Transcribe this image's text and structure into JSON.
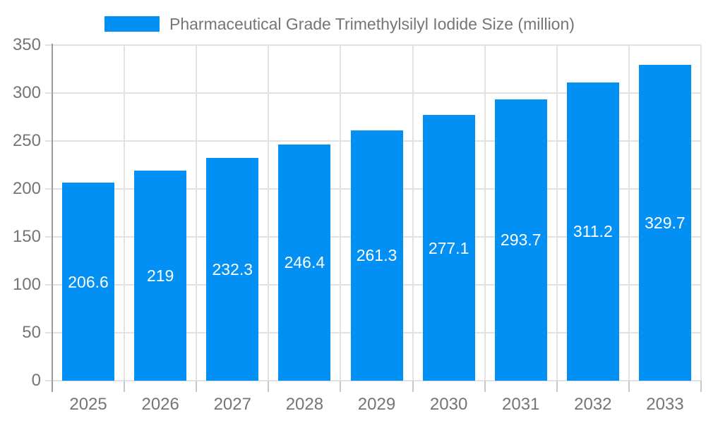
{
  "legend": {
    "label": "Pharmaceutical Grade Trimethylsilyl Iodide Size (million)"
  },
  "chart_data": {
    "type": "bar",
    "title": "Pharmaceutical Grade Trimethylsilyl Iodide Size (million)",
    "categories": [
      "2025",
      "2026",
      "2027",
      "2028",
      "2029",
      "2030",
      "2031",
      "2032",
      "2033"
    ],
    "values": [
      206.6,
      219,
      232.3,
      246.4,
      261.3,
      277.1,
      293.7,
      311.2,
      329.7
    ],
    "value_labels": [
      "206.6",
      "219",
      "232.3",
      "246.4",
      "261.3",
      "277.1",
      "293.7",
      "311.2",
      "329.7"
    ],
    "xlabel": "",
    "ylabel": "",
    "ylim": [
      0,
      350
    ],
    "yticks": [
      0,
      50,
      100,
      150,
      200,
      250,
      300,
      350
    ],
    "grid": true,
    "legend_position": "top",
    "colors": {
      "bar": "#0290F5",
      "bar_value_text": "#FFFFFF",
      "axis_text": "#757575",
      "gridline": "#E2E2E2",
      "boundary_tick": "#C8C8C8",
      "axis_line": "#9B9B9B",
      "background": "#FFFFFF"
    }
  }
}
